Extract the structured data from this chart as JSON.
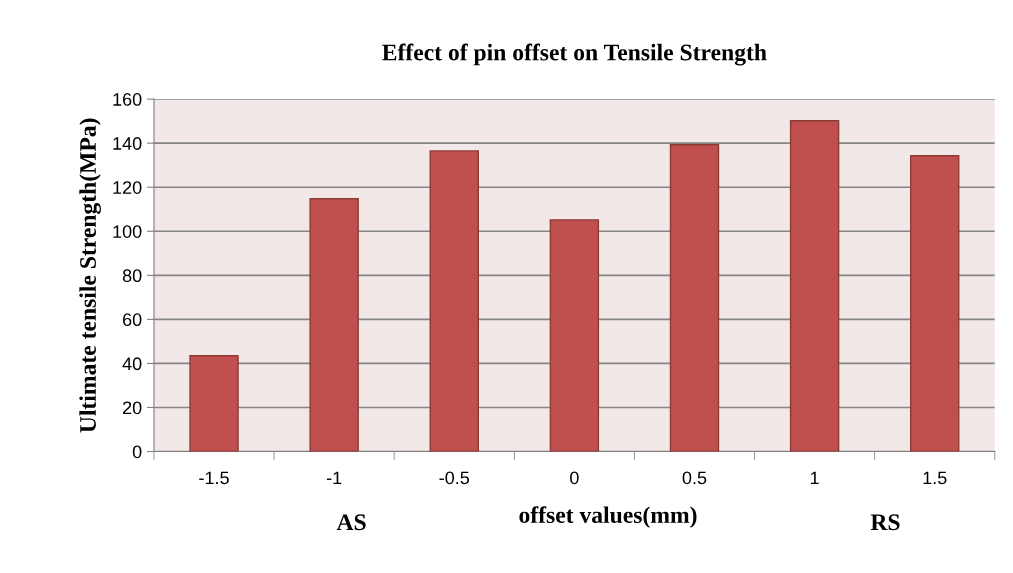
{
  "chart_data": {
    "type": "bar",
    "title": "Effect of pin offset on Tensile Strength",
    "xlabel": "offset values(mm)",
    "ylabel": "Ultimate tensile Strength(MPa)",
    "categories": [
      "-1.5",
      "-1",
      "-0.5",
      "0",
      "0.5",
      "1",
      "1.5"
    ],
    "values": [
      43.5,
      114.8,
      136.5,
      105.2,
      139.3,
      150.2,
      134.3
    ],
    "color": "#c0504d",
    "ylim": [
      0,
      160
    ],
    "yticks": [
      0,
      20,
      40,
      60,
      80,
      100,
      120,
      140,
      160
    ],
    "grid": "y",
    "legend": false,
    "annotations": [
      "AS",
      "RS"
    ]
  }
}
